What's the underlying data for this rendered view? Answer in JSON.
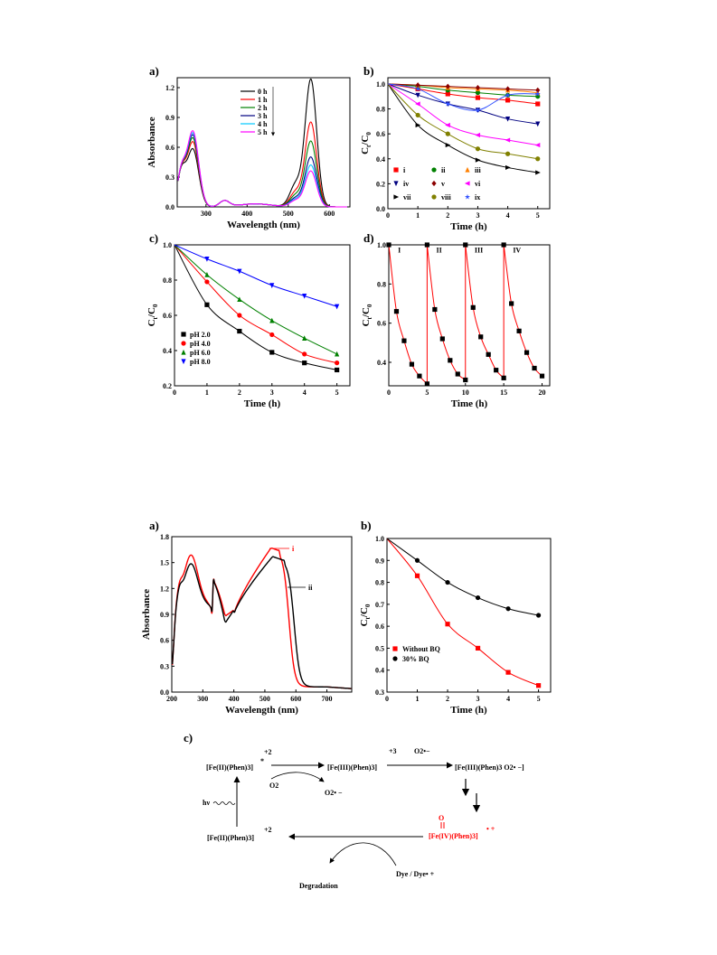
{
  "figure1": {
    "a": {
      "panel_label": "a)",
      "xlabel": "Wavelength (nm)",
      "ylabel": "Absorbance",
      "xticks": [
        "300",
        "400",
        "500",
        "600"
      ],
      "yticks": [
        "0.0",
        "0.3",
        "0.6",
        "0.9",
        "1.2"
      ],
      "legend": [
        "0 h",
        "1 h",
        "2 h",
        "3 h",
        "4 h",
        "5 h"
      ]
    },
    "b": {
      "panel_label": "b)",
      "xlabel": "Time (h)",
      "ylabel": "Ct/C0",
      "xticks": [
        "0",
        "1",
        "2",
        "3",
        "4",
        "5"
      ],
      "yticks": [
        "0.0",
        "0.2",
        "0.4",
        "0.6",
        "0.8",
        "1.0"
      ],
      "legend": [
        "i",
        "ii",
        "iii",
        "iv",
        "v",
        "vi",
        "vii",
        "viii",
        "ix"
      ]
    },
    "c": {
      "panel_label": "c)",
      "xlabel": "Time (h)",
      "ylabel": "Ct/C0",
      "xticks": [
        "0",
        "1",
        "2",
        "3",
        "4",
        "5"
      ],
      "yticks": [
        "0.2",
        "0.4",
        "0.6",
        "0.8",
        "1.0"
      ],
      "legend": [
        "pH 2.0",
        "pH 4.0",
        "pH 6.0",
        "pH 8.0"
      ]
    },
    "d": {
      "panel_label": "d)",
      "xlabel": "Time (h)",
      "ylabel": "Ct/C0",
      "xticks": [
        "0",
        "5",
        "10",
        "15",
        "20"
      ],
      "yticks": [
        "0.4",
        "0.6",
        "0.8",
        "1.0"
      ],
      "cycles": [
        "I",
        "II",
        "III",
        "IV"
      ]
    }
  },
  "figure2": {
    "a": {
      "panel_label": "a)",
      "xlabel": "Wavelength (nm)",
      "ylabel": "Absorbance",
      "xticks": [
        "200",
        "300",
        "400",
        "500",
        "600",
        "700"
      ],
      "yticks": [
        "0.0",
        "0.3",
        "0.6",
        "0.9",
        "1.2",
        "1.5",
        "1.8"
      ],
      "curve_labels": [
        "i",
        "ii"
      ]
    },
    "b": {
      "panel_label": "b)",
      "xlabel": "Time (h)",
      "ylabel": "Ct/C0",
      "xticks": [
        "0",
        "1",
        "2",
        "3",
        "4",
        "5"
      ],
      "yticks": [
        "0.3",
        "0.4",
        "0.5",
        "0.6",
        "0.7",
        "0.8",
        "0.9",
        "1.0"
      ],
      "legend": [
        "Without BQ",
        "30% BQ"
      ]
    },
    "c": {
      "panel_label": "c)",
      "scheme": {
        "fe2": "[Fe(II)(Phen)3]",
        "fe2_charge": "+2",
        "fe2_star": "*",
        "fe3": "[Fe(III)(Phen)3]",
        "fe3_charge": "+3",
        "superoxide": "O2•−",
        "fe3_sup": "[Fe(III)(Phen)3 O2• −]",
        "o2": "O2",
        "o2_radical": "O2• −",
        "fe4_oxo": "O",
        "fe4": "[Fe(IV)(Phen)3]",
        "fe4_charge": "• +",
        "hv": "hν",
        "fe2_ground": "[Fe(II)(Phen)3]",
        "fe2_ground_charge": "+2",
        "dye": "Dye / Dye• +",
        "degradation": "Degradation"
      }
    }
  },
  "colors": {
    "black": "#000000",
    "red": "#ff0000",
    "green": "#008000",
    "blue": "#0000ff",
    "navy": "#000080",
    "cyan": "#00c8ff",
    "magenta": "#ff00ff",
    "orange": "#ff8000",
    "darkred": "#8b0000",
    "olive": "#808000",
    "royal": "#3050ff"
  },
  "chart_data": [
    {
      "type": "line",
      "title": "",
      "xlabel": "Wavelength (nm)",
      "ylabel": "Absorbance",
      "xlim": [
        230,
        650
      ],
      "ylim": [
        0.0,
        1.3
      ],
      "series": [
        {
          "name": "0 h",
          "color": "#000000",
          "peak_554": 1.28,
          "peak_270": 0.58
        },
        {
          "name": "1 h",
          "color": "#ff0000",
          "peak_554": 0.85,
          "peak_270": 0.65
        },
        {
          "name": "2 h",
          "color": "#008000",
          "peak_554": 0.66,
          "peak_270": 0.69
        },
        {
          "name": "3 h",
          "color": "#000080",
          "peak_554": 0.5,
          "peak_270": 0.72
        },
        {
          "name": "4 h",
          "color": "#00c8ff",
          "peak_554": 0.42,
          "peak_270": 0.74
        },
        {
          "name": "5 h",
          "color": "#ff00ff",
          "peak_554": 0.36,
          "peak_270": 0.76
        }
      ]
    },
    {
      "type": "scatter",
      "title": "",
      "xlabel": "Time (h)",
      "ylabel": "Ct/C0",
      "x": [
        0,
        1,
        2,
        3,
        4,
        5
      ],
      "xlim": [
        0,
        5.4
      ],
      "ylim": [
        0.0,
        1.05
      ],
      "series": [
        {
          "name": "i",
          "color": "#ff0000",
          "values": [
            1.0,
            0.96,
            0.92,
            0.89,
            0.87,
            0.84
          ]
        },
        {
          "name": "ii",
          "color": "#008000",
          "values": [
            1.0,
            0.98,
            0.95,
            0.93,
            0.91,
            0.9
          ]
        },
        {
          "name": "iii",
          "color": "#ff8000",
          "values": [
            1.0,
            0.99,
            0.97,
            0.96,
            0.95,
            0.93
          ]
        },
        {
          "name": "iv",
          "color": "#000080",
          "values": [
            1.0,
            0.91,
            0.84,
            0.79,
            0.72,
            0.68
          ]
        },
        {
          "name": "v",
          "color": "#8b0000",
          "values": [
            1.0,
            0.99,
            0.98,
            0.97,
            0.96,
            0.95
          ]
        },
        {
          "name": "vi",
          "color": "#ff00ff",
          "values": [
            1.0,
            0.84,
            0.67,
            0.59,
            0.55,
            0.51
          ]
        },
        {
          "name": "vii",
          "color": "#000000",
          "values": [
            1.0,
            0.67,
            0.51,
            0.39,
            0.33,
            0.29
          ]
        },
        {
          "name": "viii",
          "color": "#808000",
          "values": [
            1.0,
            0.75,
            0.6,
            0.48,
            0.44,
            0.4
          ]
        },
        {
          "name": "ix",
          "color": "#3050ff",
          "values": [
            1.0,
            0.96,
            0.84,
            0.79,
            0.91,
            0.92
          ]
        }
      ]
    },
    {
      "type": "scatter",
      "title": "",
      "xlabel": "Time (h)",
      "ylabel": "Ct/C0",
      "x": [
        0,
        1,
        2,
        3,
        4,
        5
      ],
      "xlim": [
        0,
        5.4
      ],
      "ylim": [
        0.2,
        1.0
      ],
      "series": [
        {
          "name": "pH 2.0",
          "color": "#000000",
          "values": [
            1.0,
            0.66,
            0.51,
            0.39,
            0.33,
            0.29
          ]
        },
        {
          "name": "pH 4.0",
          "color": "#ff0000",
          "values": [
            1.0,
            0.79,
            0.6,
            0.49,
            0.38,
            0.33
          ]
        },
        {
          "name": "pH 6.0",
          "color": "#008000",
          "values": [
            1.0,
            0.83,
            0.69,
            0.57,
            0.47,
            0.38
          ]
        },
        {
          "name": "pH 8.0",
          "color": "#0000ff",
          "values": [
            1.0,
            0.92,
            0.85,
            0.77,
            0.71,
            0.65
          ]
        }
      ]
    },
    {
      "type": "line",
      "title": "",
      "xlabel": "Time (h)",
      "ylabel": "Ct/C0",
      "xlim": [
        0,
        21
      ],
      "ylim": [
        0.28,
        1.0
      ],
      "cycle_x": [
        0,
        1,
        2,
        3,
        4,
        5
      ],
      "cycles": [
        {
          "name": "I",
          "values": [
            1.0,
            0.66,
            0.51,
            0.39,
            0.33,
            0.29
          ]
        },
        {
          "name": "II",
          "values": [
            1.0,
            0.67,
            0.52,
            0.41,
            0.34,
            0.31
          ]
        },
        {
          "name": "III",
          "values": [
            1.0,
            0.68,
            0.53,
            0.44,
            0.36,
            0.32
          ]
        },
        {
          "name": "IV",
          "values": [
            1.0,
            0.7,
            0.56,
            0.45,
            0.37,
            0.33
          ]
        }
      ]
    },
    {
      "type": "line",
      "title": "",
      "xlabel": "Wavelength (nm)",
      "ylabel": "Absorbance",
      "xlim": [
        200,
        780
      ],
      "ylim": [
        0.0,
        1.8
      ],
      "series": [
        {
          "name": "i",
          "color": "#ff0000"
        },
        {
          "name": "ii",
          "color": "#000000"
        }
      ]
    },
    {
      "type": "scatter",
      "title": "",
      "xlabel": "Time (h)",
      "ylabel": "Ct/C0",
      "x": [
        0,
        1,
        2,
        3,
        4,
        5
      ],
      "xlim": [
        0,
        5.4
      ],
      "ylim": [
        0.3,
        1.0
      ],
      "series": [
        {
          "name": "Without BQ",
          "color": "#ff0000",
          "values": [
            1.0,
            0.83,
            0.61,
            0.5,
            0.39,
            0.33
          ]
        },
        {
          "name": "30% BQ",
          "color": "#000000",
          "values": [
            1.0,
            0.9,
            0.8,
            0.73,
            0.68,
            0.65
          ]
        }
      ]
    }
  ]
}
